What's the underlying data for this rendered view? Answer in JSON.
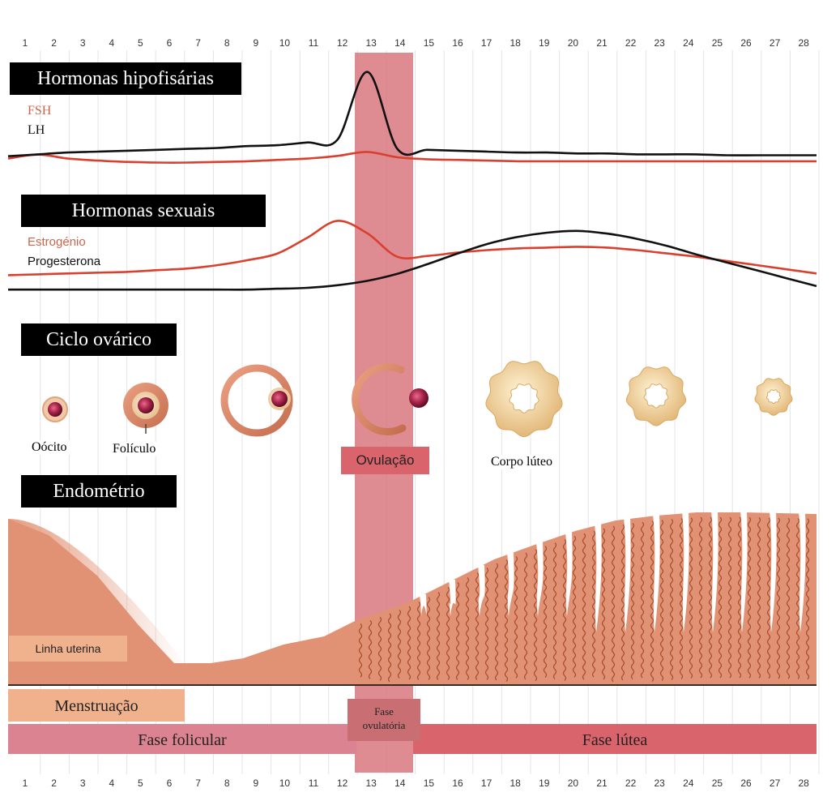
{
  "days": [
    "1",
    "2",
    "3",
    "4",
    "5",
    "6",
    "7",
    "8",
    "9",
    "10",
    "11",
    "12",
    "13",
    "14",
    "15",
    "16",
    "17",
    "18",
    "19",
    "20",
    "21",
    "22",
    "23",
    "24",
    "25",
    "26",
    "27",
    "28"
  ],
  "sections": {
    "pituitary": {
      "title": "Hormonas hipofisárias",
      "legend": [
        {
          "label": "FSH",
          "color": "#c8674b"
        },
        {
          "label": "LH",
          "color": "#111111"
        }
      ]
    },
    "sex": {
      "title": "Hormonas sexuais",
      "legend": [
        {
          "label": "Estrogénio",
          "color": "#c8674b"
        },
        {
          "label": "Progesterona",
          "color": "#111111"
        }
      ]
    },
    "ovarian": {
      "title": "Ciclo ovárico",
      "labels": {
        "oocyte": "Oócito",
        "follicle": "Folículo",
        "ovulation": "Ovulação",
        "corpus": "Corpo lúteo"
      }
    },
    "endometrium": {
      "title": "Endométrio",
      "uterine_label": "Linha uterina",
      "menstruation": "Menstruação"
    }
  },
  "phases": {
    "follicular": "Fase folicular",
    "ovulatory_line1": "Fase",
    "ovulatory_line2": "ovulatória",
    "luteal": "Fase lútea"
  },
  "colors": {
    "ovulation_band": "#d9777f",
    "tissue": "#e29274",
    "follicular_bar": "#db8390",
    "luteal_bar": "#d9646c",
    "menstruation_bar": "#f0b18d",
    "line_red": "#d8412f",
    "line_black": "#111111"
  },
  "curves": {
    "FSH": [
      2.0,
      2.6,
      2.0,
      1.7,
      1.5,
      1.4,
      1.4,
      1.5,
      1.6,
      1.8,
      2.0,
      2.4,
      3.0,
      2.2,
      1.9,
      1.8,
      1.7,
      1.6,
      1.6,
      1.6,
      1.6,
      1.6,
      1.6,
      1.6,
      1.6,
      1.6,
      1.6,
      1.6
    ],
    "LH": [
      1.8,
      2.0,
      2.2,
      2.3,
      2.4,
      2.5,
      2.6,
      2.7,
      2.9,
      3.0,
      3.3,
      3.6,
      11.0,
      2.6,
      2.5,
      2.4,
      2.3,
      2.2,
      2.2,
      2.1,
      2.1,
      2.0,
      2.0,
      2.0,
      1.9,
      1.9,
      1.9,
      1.9
    ],
    "Estrogen": [
      2.0,
      2.1,
      2.2,
      2.3,
      2.4,
      2.6,
      2.8,
      3.2,
      3.8,
      4.6,
      6.5,
      8.5,
      7.0,
      4.2,
      4.3,
      4.7,
      5.0,
      5.2,
      5.3,
      5.4,
      5.3,
      5.0,
      4.6,
      4.2,
      3.7,
      3.2,
      2.7,
      2.2
    ],
    "Progesterone": [
      1.0,
      1.0,
      1.0,
      1.0,
      1.0,
      1.0,
      1.0,
      1.0,
      1.0,
      1.1,
      1.2,
      1.5,
      2.0,
      2.8,
      3.9,
      5.1,
      6.2,
      7.0,
      7.5,
      7.7,
      7.4,
      6.8,
      6.0,
      5.0,
      4.1,
      3.2,
      2.3,
      1.4
    ]
  }
}
